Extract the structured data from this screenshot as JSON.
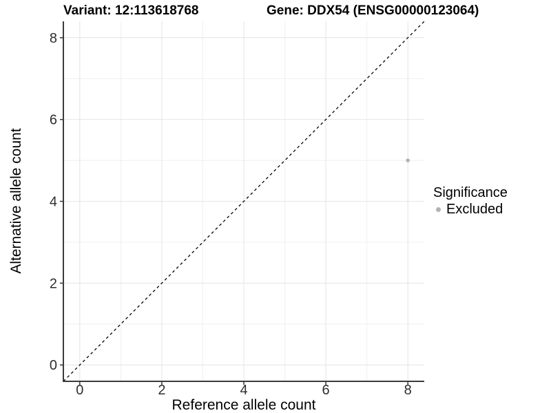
{
  "titles": {
    "variant": "Variant: 12:113618768",
    "gene": "Gene: DDX54 (ENSG00000123064)"
  },
  "legend": {
    "title": "Significance",
    "position": "right",
    "items": [
      {
        "label": "Excluded",
        "color": "#b3b3b3"
      }
    ]
  },
  "chart_data": {
    "type": "scatter",
    "title": "Variant: 12:113618768   Gene: DDX54 (ENSG00000123064)",
    "xlabel": "Reference allele count",
    "ylabel": "Alternative allele count",
    "xlim": [
      -0.4,
      8.4
    ],
    "ylim": [
      -0.4,
      8.4
    ],
    "x_ticks": [
      0,
      2,
      4,
      6,
      8
    ],
    "y_ticks": [
      0,
      2,
      4,
      6,
      8
    ],
    "x_minor_ticks": [
      1,
      3,
      5,
      7
    ],
    "y_minor_ticks": [
      1,
      3,
      5,
      7
    ],
    "grid": "on",
    "legend_position": "right",
    "series": [
      {
        "name": "Excluded",
        "color": "#b3b3b3",
        "points": [
          {
            "x": 8,
            "y": 5
          }
        ]
      }
    ],
    "reference_line": {
      "kind": "identity",
      "slope": 1,
      "intercept": 0,
      "style": "dashed",
      "color": "#000000"
    }
  },
  "colors": {
    "background": "#ffffff",
    "grid_major": "#e4e4e4",
    "grid_minor": "#efefef",
    "axis_line": "#3a3a3a",
    "tick_mark": "#333333",
    "tick_text": "#2e2e2e",
    "point": "#b3b3b3",
    "dashed_line": "#000000"
  }
}
